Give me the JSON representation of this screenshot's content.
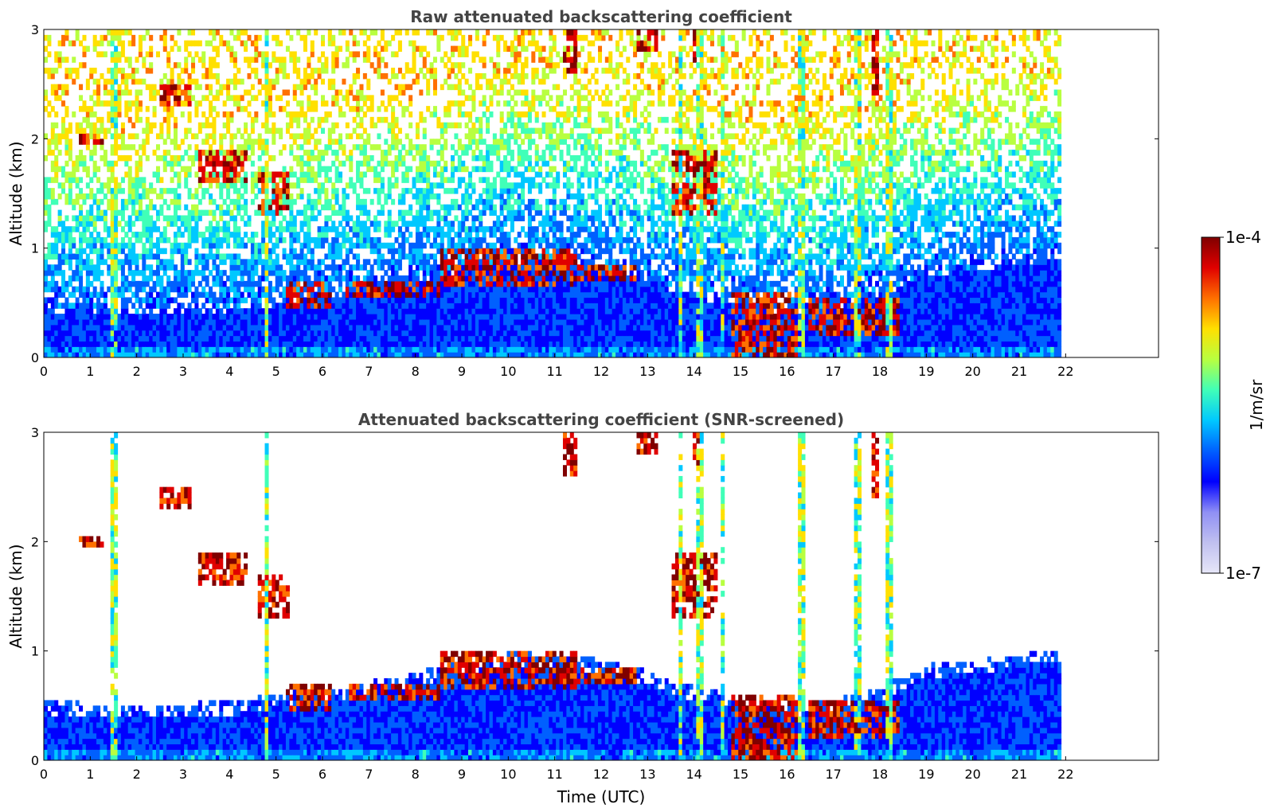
{
  "chart_data": [
    {
      "type": "heatmap",
      "title": "Raw attenuated backscattering coefficient",
      "ylabel": "Altitude (km)",
      "xlabel": "",
      "xlim": [
        0,
        24
      ],
      "ylim": [
        0,
        3
      ],
      "xticks": [
        "0",
        "1",
        "2",
        "3",
        "4",
        "5",
        "6",
        "7",
        "8",
        "9",
        "10",
        "11",
        "12",
        "13",
        "14",
        "15",
        "16",
        "17",
        "18",
        "19",
        "20",
        "21",
        "22"
      ],
      "yticks": [
        "0",
        "1",
        "2",
        "3"
      ],
      "data_end_hour": 21.9,
      "screened": false,
      "boundary_layer": [
        [
          0,
          0.42
        ],
        [
          1,
          0.4
        ],
        [
          2,
          0.38
        ],
        [
          3,
          0.4
        ],
        [
          4,
          0.42
        ],
        [
          5,
          0.48
        ],
        [
          6,
          0.55
        ],
        [
          7,
          0.6
        ],
        [
          8,
          0.68
        ],
        [
          9,
          0.78
        ],
        [
          10,
          0.86
        ],
        [
          11,
          0.85
        ],
        [
          12,
          0.8
        ],
        [
          13,
          0.7
        ],
        [
          13.6,
          0.6
        ],
        [
          15,
          0.45
        ],
        [
          16,
          0.4
        ],
        [
          17,
          0.45
        ],
        [
          18,
          0.55
        ],
        [
          19,
          0.75
        ],
        [
          20,
          0.8
        ],
        [
          21,
          0.85
        ],
        [
          21.9,
          0.9
        ]
      ],
      "cloud_layers": [
        {
          "x": [
            0.7,
            1.3
          ],
          "alt": [
            1.95,
            2.05
          ]
        },
        {
          "x": [
            2.5,
            3.2
          ],
          "alt": [
            2.3,
            2.5
          ]
        },
        {
          "x": [
            3.3,
            4.4
          ],
          "alt": [
            1.6,
            1.9
          ]
        },
        {
          "x": [
            4.6,
            5.3
          ],
          "alt": [
            1.3,
            1.7
          ]
        },
        {
          "x": [
            5.2,
            6.2
          ],
          "alt": [
            0.45,
            0.7
          ]
        },
        {
          "x": [
            6.5,
            8.5
          ],
          "alt": [
            0.55,
            0.7
          ]
        },
        {
          "x": [
            8.5,
            11.5
          ],
          "alt": [
            0.65,
            1.0
          ]
        },
        {
          "x": [
            11.5,
            12.8
          ],
          "alt": [
            0.7,
            0.85
          ]
        },
        {
          "x": [
            13.5,
            14.5
          ],
          "alt": [
            1.3,
            1.9
          ]
        },
        {
          "x": [
            14.8,
            16.2
          ],
          "alt": [
            0.0,
            0.6
          ]
        },
        {
          "x": [
            16.5,
            18.4
          ],
          "alt": [
            0.2,
            0.55
          ]
        }
      ],
      "vertical_plumes": [
        1.5,
        4.8,
        13.7,
        14.1,
        14.6,
        16.3,
        17.5,
        18.2
      ],
      "high_clouds": [
        {
          "x": [
            11.2,
            11.5
          ],
          "alt": [
            2.6,
            3.0
          ]
        },
        {
          "x": [
            12.8,
            13.2
          ],
          "alt": [
            2.8,
            3.0
          ]
        },
        {
          "x": [
            14.0,
            14.2
          ],
          "alt": [
            2.7,
            3.0
          ]
        },
        {
          "x": [
            17.8,
            18.0
          ],
          "alt": [
            2.4,
            3.0
          ]
        }
      ]
    },
    {
      "type": "heatmap",
      "title": "Attenuated backscattering coefficient (SNR-screened)",
      "ylabel": "Altitude (km)",
      "xlabel": "Time (UTC)",
      "xlim": [
        0,
        24
      ],
      "ylim": [
        0,
        3
      ],
      "xticks": [
        "0",
        "1",
        "2",
        "3",
        "4",
        "5",
        "6",
        "7",
        "8",
        "9",
        "10",
        "11",
        "12",
        "13",
        "14",
        "15",
        "16",
        "17",
        "18",
        "19",
        "20",
        "21",
        "22"
      ],
      "yticks": [
        "0",
        "1",
        "2",
        "3"
      ],
      "data_end_hour": 21.9,
      "screened": true,
      "boundary_layer": [
        [
          0,
          0.42
        ],
        [
          1,
          0.4
        ],
        [
          2,
          0.38
        ],
        [
          3,
          0.4
        ],
        [
          4,
          0.42
        ],
        [
          5,
          0.48
        ],
        [
          6,
          0.55
        ],
        [
          7,
          0.6
        ],
        [
          8,
          0.68
        ],
        [
          9,
          0.78
        ],
        [
          10,
          0.86
        ],
        [
          11,
          0.85
        ],
        [
          12,
          0.8
        ],
        [
          13,
          0.7
        ],
        [
          13.6,
          0.6
        ],
        [
          15,
          0.45
        ],
        [
          16,
          0.4
        ],
        [
          17,
          0.45
        ],
        [
          18,
          0.55
        ],
        [
          19,
          0.75
        ],
        [
          20,
          0.8
        ],
        [
          21,
          0.85
        ],
        [
          21.9,
          0.9
        ]
      ],
      "cloud_layers": [
        {
          "x": [
            0.7,
            1.3
          ],
          "alt": [
            1.95,
            2.05
          ]
        },
        {
          "x": [
            2.5,
            3.2
          ],
          "alt": [
            2.3,
            2.5
          ]
        },
        {
          "x": [
            3.3,
            4.4
          ],
          "alt": [
            1.6,
            1.9
          ]
        },
        {
          "x": [
            4.6,
            5.3
          ],
          "alt": [
            1.3,
            1.7
          ]
        },
        {
          "x": [
            5.2,
            6.2
          ],
          "alt": [
            0.45,
            0.7
          ]
        },
        {
          "x": [
            6.5,
            8.5
          ],
          "alt": [
            0.55,
            0.7
          ]
        },
        {
          "x": [
            8.5,
            11.5
          ],
          "alt": [
            0.65,
            1.0
          ]
        },
        {
          "x": [
            11.5,
            12.8
          ],
          "alt": [
            0.7,
            0.85
          ]
        },
        {
          "x": [
            13.5,
            14.5
          ],
          "alt": [
            1.3,
            1.9
          ]
        },
        {
          "x": [
            14.8,
            16.2
          ],
          "alt": [
            0.0,
            0.6
          ]
        },
        {
          "x": [
            16.5,
            18.4
          ],
          "alt": [
            0.2,
            0.55
          ]
        }
      ],
      "vertical_plumes": [
        1.5,
        4.8,
        13.7,
        14.1,
        14.6,
        16.3,
        17.5,
        18.2
      ],
      "high_clouds": [
        {
          "x": [
            11.2,
            11.5
          ],
          "alt": [
            2.6,
            3.0
          ]
        },
        {
          "x": [
            12.8,
            13.2
          ],
          "alt": [
            2.8,
            3.0
          ]
        },
        {
          "x": [
            14.0,
            14.2
          ],
          "alt": [
            2.7,
            3.0
          ]
        },
        {
          "x": [
            17.8,
            18.0
          ],
          "alt": [
            2.4,
            3.0
          ]
        }
      ]
    }
  ],
  "colorbar": {
    "label": "1/m/sr",
    "max_label": "1e-4",
    "min_label": "1e-7",
    "scale": "log",
    "colormap": "jet",
    "colors": [
      "#e6e6f8",
      "#c0c0f0",
      "#8f8ff5",
      "#0000ff",
      "#0060ff",
      "#00c8ff",
      "#40ffb8",
      "#b8ff40",
      "#ffe000",
      "#ff7000",
      "#e00000",
      "#800000"
    ]
  }
}
